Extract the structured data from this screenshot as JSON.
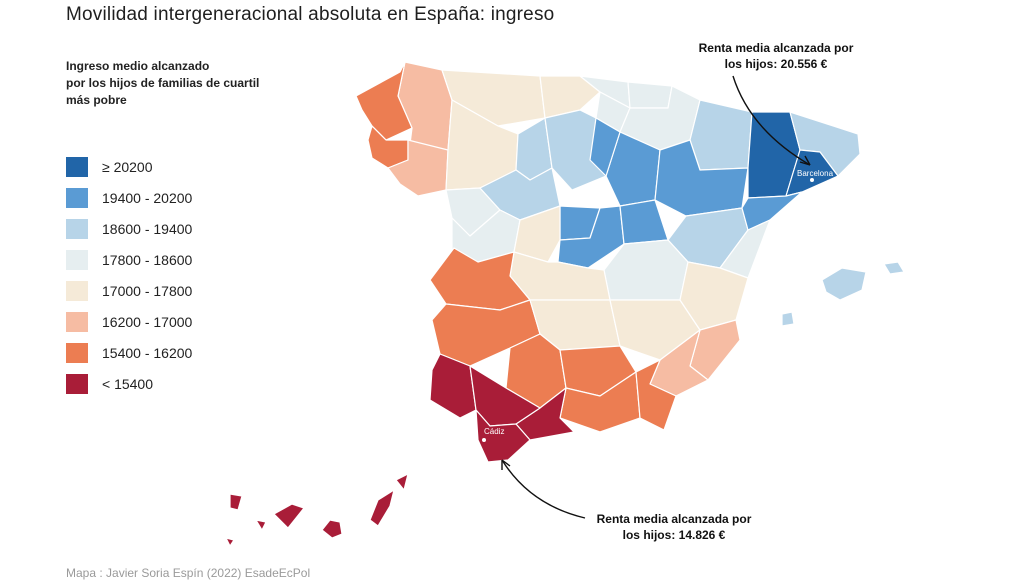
{
  "title": "Movilidad intergeneracional absoluta en España: ingreso",
  "legend": {
    "title_lines": [
      "Ingreso medio alcanzado",
      "por los hijos de familias de cuartil",
      "más pobre"
    ],
    "items": [
      {
        "label": "≥ 20200",
        "color": "#2165a8"
      },
      {
        "label": "19400 - 20200",
        "color": "#5a9bd4"
      },
      {
        "label": "18600 - 19400",
        "color": "#b7d4e8"
      },
      {
        "label": "17800 - 18600",
        "color": "#e6eef0"
      },
      {
        "label": "17000 - 17800",
        "color": "#f5ead8"
      },
      {
        "label": "16200 - 17000",
        "color": "#f6bca3"
      },
      {
        "label": "15400 - 16200",
        "color": "#ec7d52"
      },
      {
        "label": "< 15400",
        "color": "#a91d38"
      }
    ]
  },
  "callouts": {
    "top": {
      "lines": [
        "Renta media alcanzada por",
        "los hijos: 20.556 €"
      ]
    },
    "bottom": {
      "lines": [
        "Renta media alcanzada por",
        "los hijos: 14.826 €"
      ]
    }
  },
  "cities": {
    "barcelona": "Barcelona",
    "cadiz": "Cádiz"
  },
  "source": "Mapa : Javier Soria Espín (2022) EsadeEcPol",
  "colors": {
    "island_unknown": "#dddde4"
  }
}
